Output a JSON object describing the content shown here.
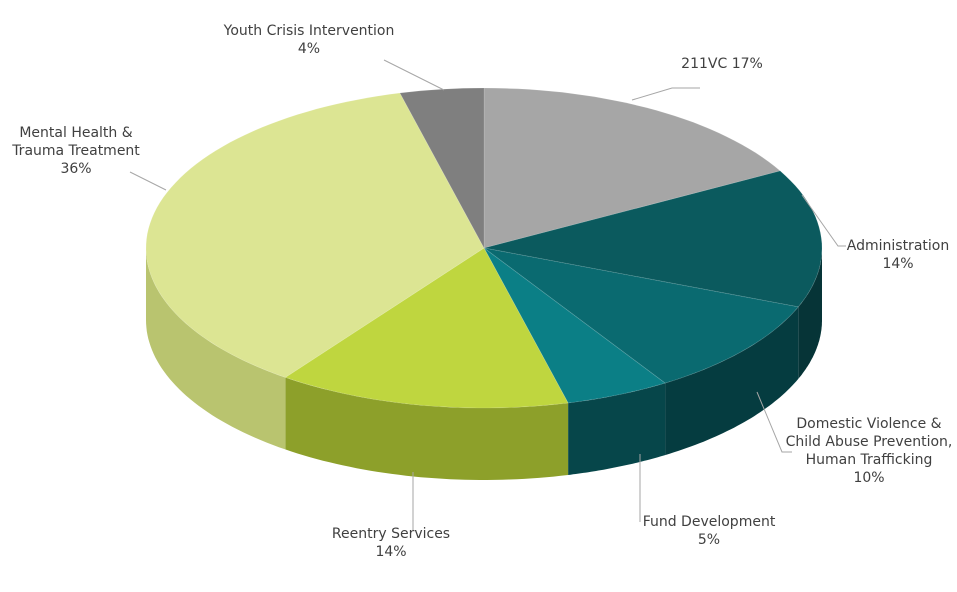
{
  "chart_data": {
    "type": "pie",
    "title": "",
    "start_angle_deg": 0,
    "direction": "clockwise",
    "three_d": true,
    "slices": [
      {
        "name": "211VC",
        "value": 17,
        "pct_label": "17%",
        "color": "#a6a6a6",
        "side_color": "#7f7f7f",
        "label_lines": [
          "211VC   17%"
        ]
      },
      {
        "name": "Administration",
        "value": 14,
        "pct_label": "14%",
        "color": "#0b5a5e",
        "side_color": "#063437",
        "label_lines": [
          "Administration",
          "14%"
        ]
      },
      {
        "name": "Domestic Violence & Child Abuse Prevention, Human Trafficking",
        "value": 10,
        "pct_label": "10%",
        "color": "#0a6a70",
        "side_color": "#053c40",
        "label_lines": [
          "Domestic Violence &",
          "Child Abuse Prevention,",
          "Human Trafficking",
          "10%"
        ]
      },
      {
        "name": "Fund Development",
        "value": 5,
        "pct_label": "5%",
        "color": "#0b7f86",
        "side_color": "#06464a",
        "label_lines": [
          "Fund Development",
          "5%"
        ]
      },
      {
        "name": "Reentry Services",
        "value": 14,
        "pct_label": "14%",
        "color": "#bfd63f",
        "side_color": "#8da02a",
        "label_lines": [
          "Reentry Services",
          "14%"
        ]
      },
      {
        "name": "Mental Health & Trauma Treatment",
        "value": 36,
        "pct_label": "36%",
        "color": "#dce593",
        "side_color": "#b9c46f",
        "label_lines": [
          "Mental Health &",
          "Trauma Treatment",
          "36%"
        ]
      },
      {
        "name": "Youth Crisis Intervention",
        "value": 4,
        "pct_label": "4%",
        "color": "#7f7f7f",
        "side_color": "#595959",
        "label_lines": [
          "Youth Crisis Intervention",
          "4%"
        ]
      }
    ]
  }
}
